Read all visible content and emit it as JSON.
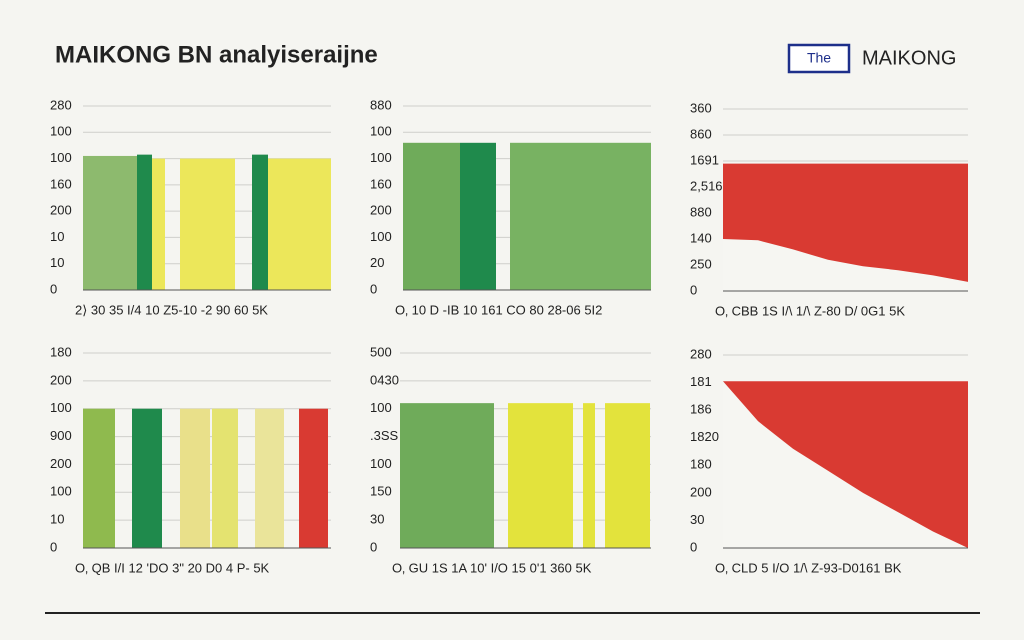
{
  "header": {
    "title": "MAIKONG BN analyiseraijne",
    "logo_box": "The",
    "brand": "MAIKONG"
  },
  "chart_data": [
    {
      "type": "bar",
      "ylim": [
        0,
        7
      ],
      "grid": true,
      "yticks": [
        {
          "value": 0,
          "label": "0"
        },
        {
          "value": 1,
          "label": "10"
        },
        {
          "value": 2,
          "label": "10"
        },
        {
          "value": 3,
          "label": "200"
        },
        {
          "value": 4,
          "label": "160"
        },
        {
          "value": 5,
          "label": "100"
        },
        {
          "value": 6,
          "label": "100"
        },
        {
          "value": 7,
          "label": "280"
        }
      ],
      "x_axis_text": "2⟩ 30 35 I/4 10 Z5-10 -2 90 60 5K",
      "values": [
        5.1,
        5.15,
        5.0,
        5.0,
        5.15,
        5.0
      ],
      "colors": [
        "#8dba6e",
        "#1f8a4c",
        "#ece75a",
        "#ece75a",
        "#1f8a4c",
        "#ece75a"
      ]
    },
    {
      "type": "bar",
      "ylim": [
        0,
        7
      ],
      "grid": true,
      "yticks": [
        {
          "value": 0,
          "label": "0"
        },
        {
          "value": 1,
          "label": "20"
        },
        {
          "value": 2,
          "label": "100"
        },
        {
          "value": 3,
          "label": "200"
        },
        {
          "value": 4,
          "label": "160"
        },
        {
          "value": 5,
          "label": "100"
        },
        {
          "value": 6,
          "label": "100"
        },
        {
          "value": 7,
          "label": "880"
        }
      ],
      "x_axis_text": "O‚ 10 D -IB 10 161 CO 80 28-06 5I2",
      "values": [
        5.6,
        5.6,
        5.6
      ],
      "colors": [
        "#6fab5a",
        "#1f8a4c",
        "#78b262"
      ]
    },
    {
      "type": "area",
      "ylim": [
        0,
        7
      ],
      "grid": true,
      "yticks": [
        {
          "value": 0,
          "label": "0"
        },
        {
          "value": 1,
          "label": "250"
        },
        {
          "value": 2,
          "label": "140"
        },
        {
          "value": 3,
          "label": "880"
        },
        {
          "value": 4,
          "label": "2,516"
        },
        {
          "value": 5,
          "label": "1691"
        },
        {
          "value": 6,
          "label": "860"
        },
        {
          "value": 7,
          "label": "360"
        }
      ],
      "x_axis_text": "O‚ CBB 1S I/\\ 1/\\ Z-80 D/ 0G1 5K",
      "series": [
        {
          "color": "#d93a32",
          "values": [
            4.9,
            4.9,
            4.9,
            4.9,
            4.9,
            4.9,
            4.9,
            4.9
          ]
        },
        {
          "color": "#f6f6f2",
          "values": [
            2.0,
            1.95,
            1.6,
            1.2,
            0.95,
            0.8,
            0.6,
            0.35
          ]
        }
      ]
    },
    {
      "type": "bar",
      "ylim": [
        0,
        7
      ],
      "grid": true,
      "yticks": [
        {
          "value": 0,
          "label": "0"
        },
        {
          "value": 1,
          "label": "10"
        },
        {
          "value": 2,
          "label": "100"
        },
        {
          "value": 3,
          "label": "200"
        },
        {
          "value": 4,
          "label": "900"
        },
        {
          "value": 5,
          "label": "100"
        },
        {
          "value": 6,
          "label": "200"
        },
        {
          "value": 7,
          "label": "180"
        }
      ],
      "x_axis_text": "O‚ QB I/I 12 'DO 3\" 20 D0 4 P- 5K",
      "values": [
        5.0,
        5.0,
        5.0,
        5.0,
        5.0,
        5.0
      ],
      "colors": [
        "#8fba4e",
        "#1f8a4c",
        "#e9e08a",
        "#e4e370",
        "#eae49a",
        "#d93a32"
      ]
    },
    {
      "type": "bar",
      "ylim": [
        0,
        7
      ],
      "grid": true,
      "yticks": [
        {
          "value": 0,
          "label": "0"
        },
        {
          "value": 1,
          "label": "30"
        },
        {
          "value": 2,
          "label": "150"
        },
        {
          "value": 3,
          "label": "100"
        },
        {
          "value": 4,
          "label": ".3SS"
        },
        {
          "value": 5,
          "label": "100"
        },
        {
          "value": 6,
          "label": "0430"
        },
        {
          "value": 7,
          "label": "500"
        }
      ],
      "x_axis_text": "O‚ GU 1S 1A 10' I/O 15 0'1 360 5K",
      "values": [
        5.2,
        5.2,
        5.2,
        5.2
      ],
      "colors": [
        "#6fab5a",
        "#e3e33c",
        "#e3e33c",
        "#e3e33c"
      ]
    },
    {
      "type": "area",
      "ylim": [
        0,
        7
      ],
      "grid": true,
      "yticks": [
        {
          "value": 0,
          "label": "0"
        },
        {
          "value": 1,
          "label": "30"
        },
        {
          "value": 2,
          "label": "200"
        },
        {
          "value": 3,
          "label": "180"
        },
        {
          "value": 4,
          "label": "1820"
        },
        {
          "value": 5,
          "label": "186"
        },
        {
          "value": 6,
          "label": "181"
        },
        {
          "value": 7,
          "label": "280"
        }
      ],
      "x_axis_text": "O‚ CLD 5 I/O 1/\\ Z-93-D0161 BK",
      "series": [
        {
          "color": "#d93a32",
          "values": [
            6.05,
            6.05,
            6.05,
            6.05,
            6.05,
            6.05,
            6.05,
            6.05
          ]
        },
        {
          "color": "#f6f6f2",
          "values": [
            6.05,
            4.6,
            3.6,
            2.8,
            2.0,
            1.3,
            0.6,
            0
          ]
        }
      ]
    }
  ]
}
